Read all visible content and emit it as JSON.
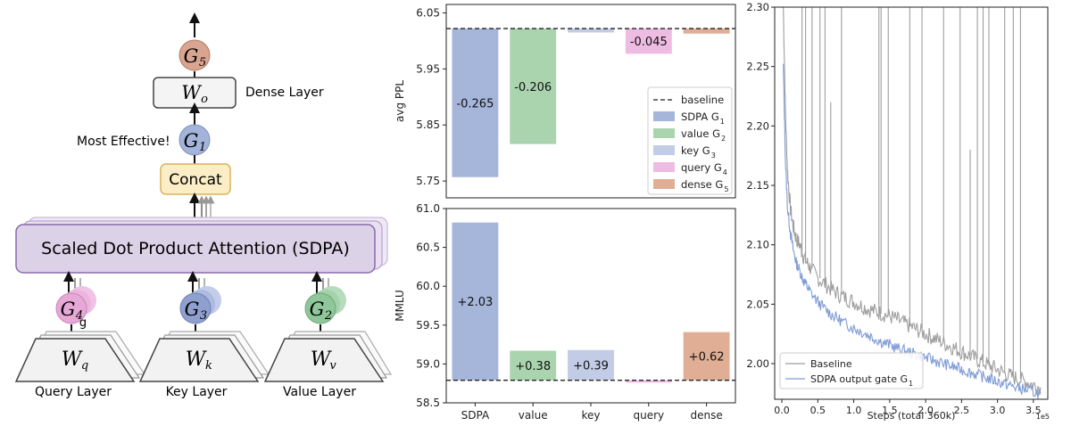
{
  "diagram": {
    "top_gate": "G",
    "top_gate_sub": "5",
    "wo_label": "W",
    "wo_sub": "o",
    "dense_layer": "Dense Layer",
    "most_effective": "Most Effective!",
    "g1_label": "G",
    "g1_sub": "1",
    "concat": "Concat",
    "sdpa": "Scaled Dot Product Attention (SDPA)",
    "g4_label": "G",
    "g4_sub": "4",
    "g4_extra": "g",
    "g3_label": "G",
    "g3_sub": "3",
    "g2_label": "G",
    "g2_sub": "2",
    "wq_label": "W",
    "wq_sub": "q",
    "wk_label": "W",
    "wk_sub": "k",
    "wv_label": "W",
    "wv_sub": "v",
    "query_layer": "Query Layer",
    "key_layer": "Key Layer",
    "value_layer": "Value Layer",
    "colors": {
      "g5": "#d9a590",
      "g1": "#a3b3d9",
      "g4": "#e6a8d6",
      "g3": "#8fa0cf",
      "g2": "#8fc79a",
      "concat_fill": "#fbeec6",
      "concat_stroke": "#d9b25a",
      "sdpa_fill": "#dcd2e8",
      "sdpa_stroke": "#8a6aaa"
    }
  },
  "chart_data": [
    {
      "type": "bar",
      "ylabel": "avg PPL",
      "ylim": [
        5.72,
        6.065
      ],
      "yticks": [
        "6.05",
        "5.95",
        "5.85",
        "5.75"
      ],
      "ytick_values": [
        6.05,
        5.95,
        5.85,
        5.75
      ],
      "baseline": 6.022,
      "categories": [
        "SDPA",
        "value",
        "key",
        "query",
        "dense"
      ],
      "values": [
        5.757,
        5.816,
        6.015,
        5.977,
        6.013
      ],
      "labels": [
        "-0.265",
        "-0.206",
        "",
        "-0.045",
        ""
      ],
      "colors": [
        "#a6b5da",
        "#a9d4ad",
        "#c3cce6",
        "#eebbe3",
        "#dfae94"
      ],
      "legend": {
        "placement": "lower-right",
        "entries": [
          {
            "name": "baseline",
            "sub": "",
            "kind": "line",
            "color": "#222222"
          },
          {
            "name": "SDPA G",
            "sub": "1",
            "kind": "patch",
            "color": "#a6b5da"
          },
          {
            "name": "value G",
            "sub": "2",
            "kind": "patch",
            "color": "#a9d4ad"
          },
          {
            "name": "key G",
            "sub": "3",
            "kind": "patch",
            "color": "#c3cce6"
          },
          {
            "name": "query G",
            "sub": "4",
            "kind": "patch",
            "color": "#eebbe3"
          },
          {
            "name": "dense G",
            "sub": "5",
            "kind": "patch",
            "color": "#dfae94"
          }
        ]
      }
    },
    {
      "type": "bar",
      "ylabel": "MMLU",
      "ylim": [
        58.5,
        61.0
      ],
      "yticks": [
        "61.0",
        "60.5",
        "60.0",
        "59.5",
        "59.0",
        "58.5"
      ],
      "ytick_values": [
        61.0,
        60.5,
        60.0,
        59.5,
        59.0,
        58.5
      ],
      "baseline": 58.79,
      "categories": [
        "SDPA",
        "value",
        "key",
        "query",
        "dense"
      ],
      "values": [
        60.82,
        59.17,
        59.18,
        58.76,
        59.41
      ],
      "labels": [
        "+2.03",
        "+0.38",
        "+0.39",
        "",
        "+0.62"
      ],
      "colors": [
        "#a6b5da",
        "#a9d4ad",
        "#c3cce6",
        "#eebbe3",
        "#dfae94"
      ]
    },
    {
      "type": "line",
      "xlabel": "Steps (total 360k)",
      "x_exponent_label": "1e5",
      "xlim": [
        -0.1,
        3.7
      ],
      "ylim": [
        1.97,
        2.3
      ],
      "xticks": [
        "0.0",
        "0.5",
        "1.0",
        "1.5",
        "2.0",
        "2.5",
        "3.0",
        "3.5"
      ],
      "xtick_values": [
        0.0,
        0.5,
        1.0,
        1.5,
        2.0,
        2.5,
        3.0,
        3.5
      ],
      "yticks": [
        "2.30",
        "2.25",
        "2.20",
        "2.15",
        "2.10",
        "2.05",
        "2.00"
      ],
      "ytick_values": [
        2.3,
        2.25,
        2.2,
        2.15,
        2.1,
        2.05,
        2.0
      ],
      "series": [
        {
          "name": "Baseline",
          "color": "#9e9e9e",
          "x": [
            0.02,
            0.05,
            0.08,
            0.12,
            0.16,
            0.2,
            0.25,
            0.3,
            0.35,
            0.4,
            0.5,
            0.6,
            0.7,
            0.8,
            0.9,
            1.0,
            1.1,
            1.2,
            1.3,
            1.4,
            1.5,
            1.6,
            1.7,
            1.8,
            1.9,
            2.0,
            2.1,
            2.2,
            2.3,
            2.4,
            2.5,
            2.6,
            2.7,
            2.8,
            2.9,
            3.0,
            3.1,
            3.2,
            3.3,
            3.4,
            3.5,
            3.6
          ],
          "y": [
            2.3,
            2.21,
            2.16,
            2.13,
            2.115,
            2.105,
            2.1,
            2.09,
            2.085,
            2.08,
            2.072,
            2.067,
            2.062,
            2.058,
            2.055,
            2.052,
            2.049,
            2.046,
            2.044,
            2.042,
            2.04,
            2.037,
            2.034,
            2.031,
            2.028,
            2.025,
            2.022,
            2.019,
            2.016,
            2.013,
            2.01,
            2.007,
            2.004,
            2.001,
            1.998,
            1.995,
            1.992,
            1.989,
            1.987,
            1.985,
            1.982,
            1.98
          ],
          "spikes_x": [
            0.28,
            0.33,
            0.42,
            0.53,
            0.6,
            0.68,
            0.83,
            1.35,
            1.38,
            1.48,
            1.78,
            1.95,
            2.25,
            2.48,
            2.62,
            2.72,
            2.8,
            2.88,
            3.1,
            3.22,
            3.32
          ],
          "spikes_y": [
            2.3,
            2.3,
            2.3,
            2.3,
            2.3,
            2.22,
            2.3,
            2.3,
            2.3,
            2.3,
            2.3,
            2.3,
            2.3,
            2.3,
            2.18,
            2.3,
            2.3,
            2.3,
            2.3,
            2.3,
            2.3
          ]
        },
        {
          "name": "SDPA output gate G",
          "name_sub": "1",
          "color": "#7f9cd6",
          "x": [
            0.02,
            0.05,
            0.08,
            0.12,
            0.16,
            0.2,
            0.25,
            0.3,
            0.35,
            0.4,
            0.5,
            0.6,
            0.7,
            0.8,
            0.9,
            1.0,
            1.1,
            1.2,
            1.3,
            1.4,
            1.5,
            1.6,
            1.7,
            1.8,
            1.9,
            2.0,
            2.1,
            2.2,
            2.3,
            2.4,
            2.5,
            2.6,
            2.7,
            2.8,
            2.9,
            3.0,
            3.1,
            3.2,
            3.3,
            3.4,
            3.5,
            3.6
          ],
          "y": [
            2.25,
            2.17,
            2.13,
            2.11,
            2.095,
            2.085,
            2.078,
            2.07,
            2.065,
            2.06,
            2.052,
            2.046,
            2.041,
            2.037,
            2.033,
            2.03,
            2.027,
            2.024,
            2.021,
            2.018,
            2.016,
            2.013,
            2.011,
            2.009,
            2.007,
            2.005,
            2.003,
            2.001,
            1.999,
            1.997,
            1.995,
            1.993,
            1.991,
            1.989,
            1.987,
            1.985,
            1.983,
            1.981,
            1.979,
            1.978,
            1.976,
            1.975
          ]
        }
      ],
      "legend": {
        "placement": "lower-left"
      }
    }
  ]
}
